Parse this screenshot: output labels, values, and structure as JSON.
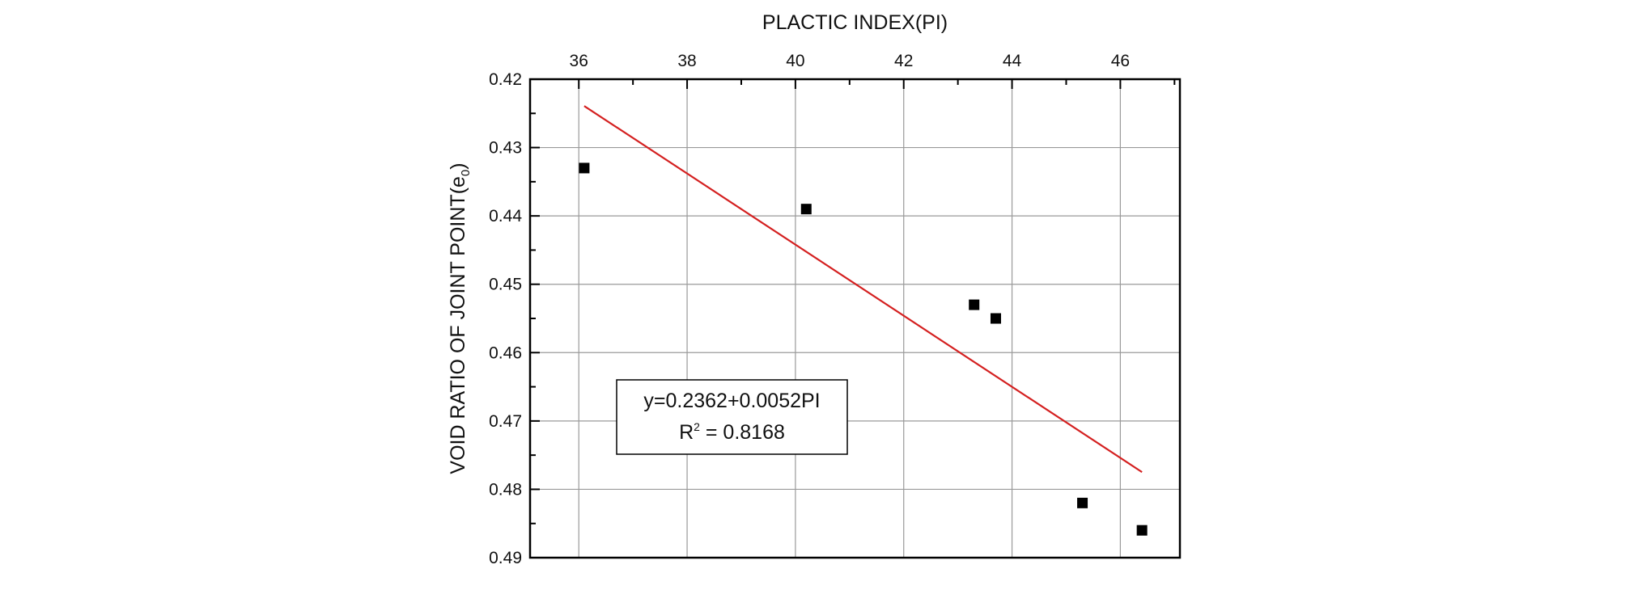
{
  "chart_data": {
    "type": "scatter",
    "title": "",
    "xlabel": "PLACTIC INDEX(PI)",
    "ylabel_prefix": "VOID RATIO OF JOINT POINT(e",
    "ylabel_sub": "0",
    "ylabel_suffix": ")",
    "x_axis_position": "top",
    "y_axis_inverted": true,
    "grid": true,
    "xlim": [
      35.1,
      47.1
    ],
    "ylim": [
      0.42,
      0.49
    ],
    "xticks": [
      36,
      38,
      40,
      42,
      44,
      46
    ],
    "xtick_labels": [
      "36",
      "38",
      "40",
      "42",
      "44",
      "46"
    ],
    "yticks": [
      0.42,
      0.43,
      0.44,
      0.45,
      0.46,
      0.47,
      0.48,
      0.49
    ],
    "ytick_labels": [
      "0.42",
      "0.43",
      "0.44",
      "0.45",
      "0.46",
      "0.47",
      "0.48",
      "0.49"
    ],
    "points": [
      {
        "x": 36.1,
        "y": 0.433
      },
      {
        "x": 40.2,
        "y": 0.439
      },
      {
        "x": 43.3,
        "y": 0.453
      },
      {
        "x": 43.7,
        "y": 0.455
      },
      {
        "x": 45.3,
        "y": 0.482
      },
      {
        "x": 46.4,
        "y": 0.486
      }
    ],
    "fit_line": {
      "intercept": 0.2362,
      "slope": 0.0052,
      "x_range": [
        36.1,
        46.4
      ],
      "color": "#d42020"
    },
    "marker_color": "#000000",
    "annotation": {
      "equation": "y=0.2362+0.0052PI",
      "r2_prefix": "R",
      "r2_sup": "2",
      "r2_value": " = 0.8168",
      "position": "lower-left"
    }
  }
}
